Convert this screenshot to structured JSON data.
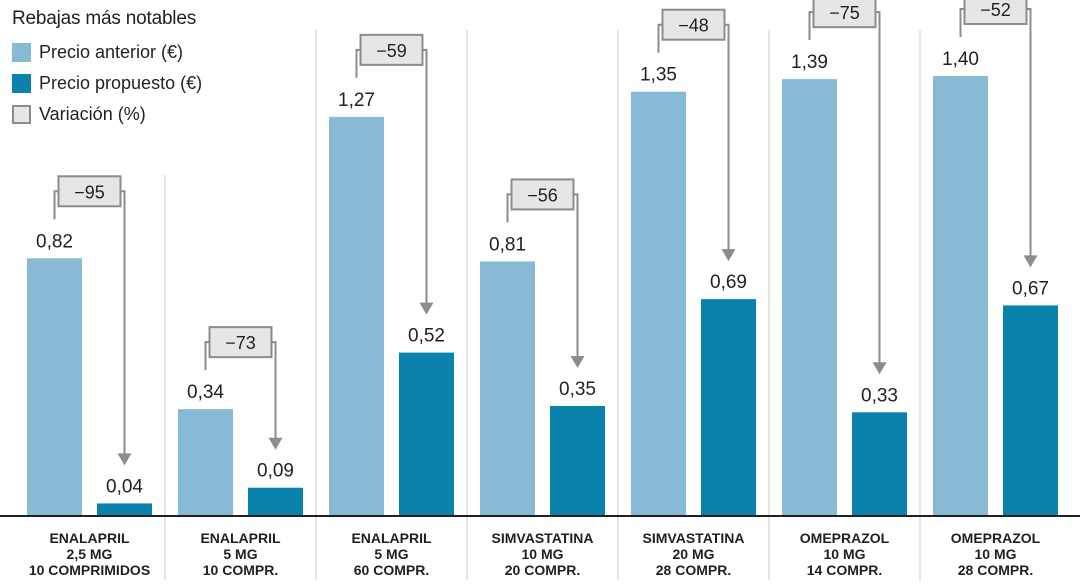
{
  "legend": {
    "title": "Rebajas más notables",
    "previous": "Precio anterior (€)",
    "proposed": "Precio propuesto (€)",
    "variation": "Variación (%)"
  },
  "colors": {
    "previous": "#88b9d5",
    "proposed": "#0b82ab",
    "variation_box": "#e6e6e4",
    "arrow": "#8c8c8c"
  },
  "chart_data": {
    "type": "bar",
    "title": "Rebajas más notables",
    "xlabel": "",
    "ylabel": "",
    "categories": [
      [
        "ENALAPRIL",
        "2,5 MG",
        "10 COMPRIMIDOS"
      ],
      [
        "ENALAPRIL",
        "5 MG",
        "10 COMPR."
      ],
      [
        "ENALAPRIL",
        "5 MG",
        "60 COMPR."
      ],
      [
        "SIMVASTATINA",
        "10 MG",
        "20 COMPR."
      ],
      [
        "SIMVASTATINA",
        "20 MG",
        "28 COMPR."
      ],
      [
        "OMEPRAZOL",
        "10 MG",
        "14 COMPR."
      ],
      [
        "OMEPRAZOL",
        "10 MG",
        "28 COMPR."
      ]
    ],
    "series": [
      {
        "name": "Precio anterior (€)",
        "values": [
          0.82,
          0.34,
          1.27,
          0.81,
          1.35,
          1.39,
          1.4
        ],
        "labels": [
          "0,82",
          "0,34",
          "1,27",
          "0,81",
          "1,35",
          "1,39",
          "1,40"
        ]
      },
      {
        "name": "Precio propuesto (€)",
        "values": [
          0.04,
          0.09,
          0.52,
          0.35,
          0.69,
          0.33,
          0.67
        ],
        "labels": [
          "0,04",
          "0,09",
          "0,52",
          "0,35",
          "0,69",
          "0,33",
          "0,67"
        ]
      }
    ],
    "variation": {
      "name": "Variación (%)",
      "values": [
        -95,
        -73,
        -59,
        -56,
        -48,
        -75,
        -52
      ],
      "labels": [
        "−95",
        "−73",
        "−59",
        "−56",
        "−48",
        "−75",
        "−52"
      ]
    },
    "ylim": [
      0,
      1.4
    ],
    "grid": false,
    "legend_position": "top-left"
  }
}
